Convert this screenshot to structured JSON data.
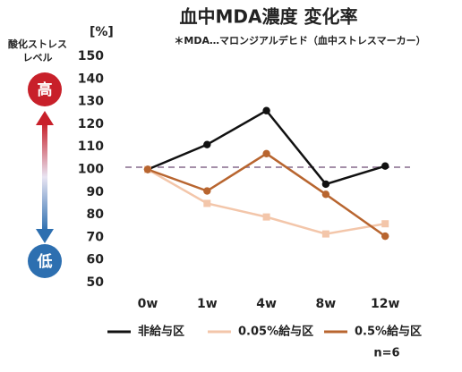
{
  "chart_data": {
    "type": "line",
    "title": "血中MDA濃度 変化率",
    "subtitle": "＊MDA…マロンジアルデヒド（血中ストレスマーカー）",
    "y_axis_label": "[%]",
    "side_label_lines": [
      "酸化ストレス",
      "レベル"
    ],
    "high_label": "高",
    "low_label": "低",
    "note": "n=6",
    "categories": [
      "0w",
      "1w",
      "4w",
      "8w",
      "12w"
    ],
    "series": [
      {
        "name": "非給与区",
        "color": "#111111",
        "marker": "circle",
        "values": [
          100,
          111,
          126,
          93.5,
          101.5
        ]
      },
      {
        "name": "0.05%給与区",
        "color": "#f3c6aa",
        "marker": "square",
        "values": [
          100,
          85,
          79,
          71.5,
          76
        ]
      },
      {
        "name": "0.5%給与区",
        "color": "#b8652f",
        "marker": "circle",
        "values": [
          100,
          90.5,
          107,
          89,
          70.5
        ]
      }
    ],
    "reference_line": 101,
    "reference_color": "#a48fa8",
    "ylim": [
      50,
      150
    ],
    "yticks": [
      50,
      60,
      70,
      80,
      90,
      100,
      110,
      120,
      130,
      140,
      150
    ]
  }
}
